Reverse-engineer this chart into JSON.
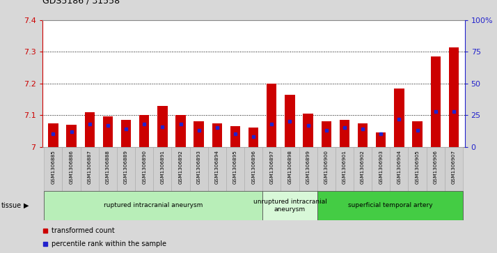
{
  "title": "GDS5186 / 31558",
  "samples": [
    "GSM1306885",
    "GSM1306886",
    "GSM1306887",
    "GSM1306888",
    "GSM1306889",
    "GSM1306890",
    "GSM1306891",
    "GSM1306892",
    "GSM1306893",
    "GSM1306894",
    "GSM1306895",
    "GSM1306896",
    "GSM1306897",
    "GSM1306898",
    "GSM1306899",
    "GSM1306900",
    "GSM1306901",
    "GSM1306902",
    "GSM1306903",
    "GSM1306904",
    "GSM1306905",
    "GSM1306906",
    "GSM1306907"
  ],
  "transformed_counts": [
    7.075,
    7.07,
    7.11,
    7.095,
    7.085,
    7.1,
    7.13,
    7.1,
    7.08,
    7.075,
    7.065,
    7.06,
    7.2,
    7.165,
    7.105,
    7.08,
    7.085,
    7.075,
    7.045,
    7.185,
    7.08,
    7.285,
    7.315
  ],
  "percentile_ranks": [
    10,
    12,
    18,
    17,
    14,
    18,
    16,
    18,
    13,
    15,
    10,
    8,
    18,
    20,
    17,
    13,
    15,
    14,
    10,
    22,
    13,
    28,
    28
  ],
  "ylim_left": [
    7.0,
    7.4
  ],
  "ylim_right": [
    0,
    100
  ],
  "yticks_left": [
    7.0,
    7.1,
    7.2,
    7.3,
    7.4
  ],
  "yticks_right": [
    0,
    25,
    50,
    75,
    100
  ],
  "ytick_labels_right": [
    "0",
    "25",
    "50",
    "75",
    "100%"
  ],
  "groups": [
    {
      "label": "ruptured intracranial aneurysm",
      "start": 0,
      "end": 12,
      "color": "#b8eeb8"
    },
    {
      "label": "unruptured intracranial\naneurysm",
      "start": 12,
      "end": 15,
      "color": "#d8f8d8"
    },
    {
      "label": "superficial temporal artery",
      "start": 15,
      "end": 23,
      "color": "#44cc44"
    }
  ],
  "bar_color": "#cc0000",
  "percentile_color": "#2222cc",
  "bar_width": 0.55,
  "bg_color": "#d8d8d8",
  "plot_bg_color": "#ffffff",
  "cell_bg_color": "#d0d0d0",
  "grid_color": "#000000",
  "left_axis_color": "#cc0000",
  "right_axis_color": "#2222cc",
  "tissue_label": "tissue",
  "legend_items": [
    {
      "label": "transformed count",
      "color": "#cc0000"
    },
    {
      "label": "percentile rank within the sample",
      "color": "#2222cc"
    }
  ]
}
